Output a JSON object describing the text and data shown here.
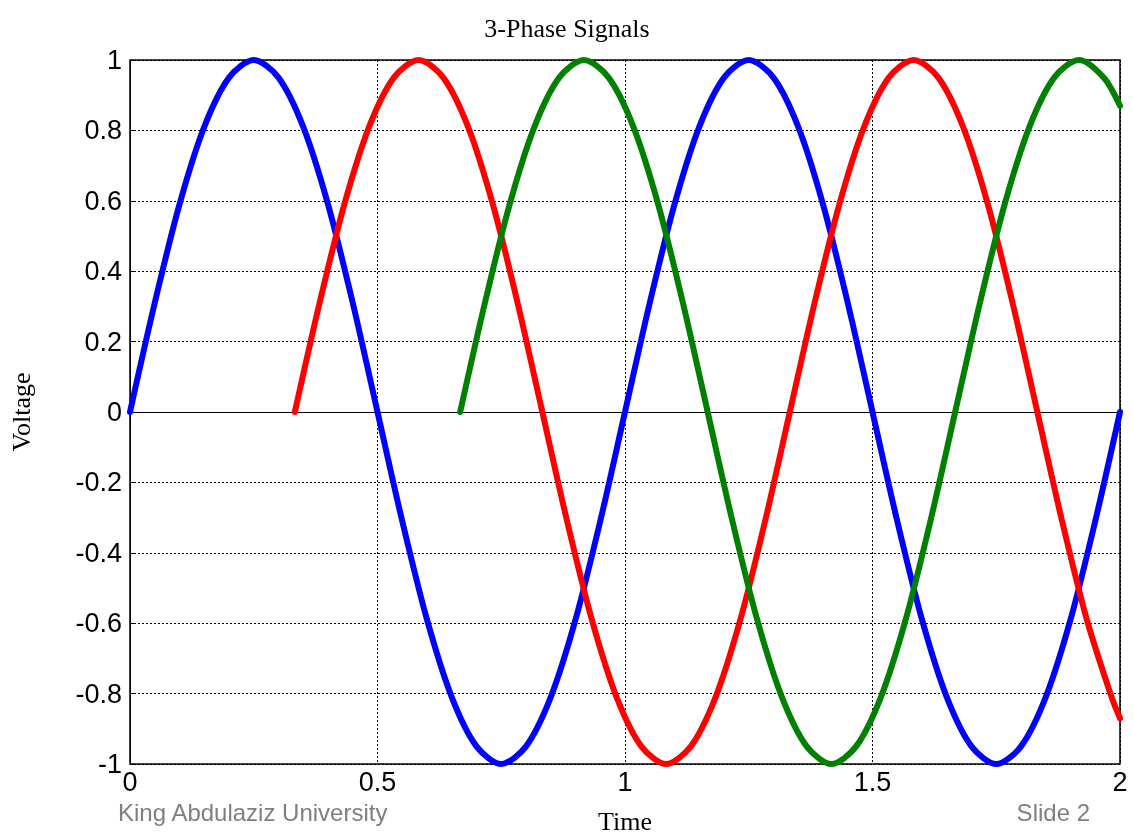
{
  "chart_data": {
    "type": "line",
    "title": "3-Phase Signals",
    "xlabel": "Time",
    "ylabel": "Voltage",
    "annotations": [
      "King Abdulaziz University",
      "Slide 2"
    ],
    "xlim": [
      0,
      2
    ],
    "xticks": [
      0,
      0.5,
      1,
      1.5,
      2
    ],
    "ylim": [
      -1,
      1
    ],
    "yticks": [
      -1,
      -0.8,
      -0.6,
      -0.4,
      -0.2,
      0,
      0.2,
      0.4,
      0.6,
      0.8,
      1
    ],
    "grid": true,
    "marker": "none",
    "line_style": "solid",
    "series": [
      {
        "color": "#0000ff",
        "x": [
          0,
          0.05,
          0.1,
          0.15,
          0.2,
          0.25,
          0.3,
          0.35,
          0.4,
          0.45,
          0.5,
          0.55,
          0.6,
          0.65,
          0.7,
          0.75,
          0.8,
          0.85,
          0.9,
          0.95,
          1,
          1.05,
          1.1,
          1.15,
          1.2,
          1.25,
          1.3,
          1.35,
          1.4,
          1.45,
          1.5,
          1.55,
          1.6,
          1.65,
          1.7,
          1.75,
          1.8,
          1.85,
          1.9,
          1.95,
          2
        ],
        "values": [
          0,
          0.31,
          0.59,
          0.81,
          0.95,
          1,
          0.95,
          0.81,
          0.59,
          0.31,
          0,
          -0.31,
          -0.59,
          -0.81,
          -0.95,
          -1,
          -0.95,
          -0.81,
          -0.59,
          -0.31,
          0,
          0.31,
          0.59,
          0.81,
          0.95,
          1,
          0.95,
          0.81,
          0.59,
          0.31,
          0,
          -0.31,
          -0.59,
          -0.81,
          -0.95,
          -1,
          -0.95,
          -0.81,
          -0.59,
          -0.31,
          0
        ]
      },
      {
        "color": "#ff0000",
        "x": [
          0.333,
          0.383,
          0.433,
          0.483,
          0.533,
          0.583,
          0.633,
          0.683,
          0.733,
          0.783,
          0.833,
          0.883,
          0.933,
          0.983,
          1.033,
          1.083,
          1.133,
          1.183,
          1.233,
          1.283,
          1.333,
          1.383,
          1.433,
          1.483,
          1.533,
          1.583,
          1.633,
          1.683,
          1.733,
          1.783,
          1.833,
          1.883,
          1.933,
          1.983,
          2
        ],
        "values": [
          0,
          0.31,
          0.59,
          0.81,
          0.95,
          1,
          0.95,
          0.81,
          0.59,
          0.31,
          0,
          -0.31,
          -0.59,
          -0.81,
          -0.95,
          -1,
          -0.95,
          -0.81,
          -0.59,
          -0.31,
          0,
          0.31,
          0.59,
          0.81,
          0.95,
          1,
          0.95,
          0.81,
          0.59,
          0.31,
          0,
          -0.31,
          -0.59,
          -0.81,
          -0.87
        ]
      },
      {
        "color": "#008000",
        "x": [
          0.667,
          0.717,
          0.767,
          0.817,
          0.867,
          0.917,
          0.967,
          1.017,
          1.067,
          1.117,
          1.167,
          1.217,
          1.267,
          1.317,
          1.367,
          1.417,
          1.467,
          1.517,
          1.567,
          1.617,
          1.667,
          1.717,
          1.767,
          1.817,
          1.867,
          1.917,
          1.967,
          2
        ],
        "values": [
          0,
          0.31,
          0.59,
          0.81,
          0.95,
          1,
          0.95,
          0.81,
          0.59,
          0.31,
          0,
          -0.31,
          -0.59,
          -0.81,
          -0.95,
          -1,
          -0.95,
          -0.81,
          -0.59,
          -0.31,
          0,
          0.31,
          0.59,
          0.81,
          0.95,
          1,
          0.95,
          0.87
        ]
      }
    ]
  }
}
